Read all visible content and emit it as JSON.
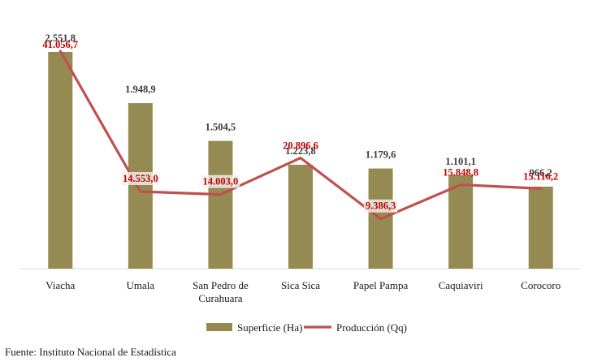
{
  "chart_data": {
    "type": "bar",
    "categories": [
      [
        "Viacha"
      ],
      [
        "Umala"
      ],
      [
        "San Pedro de",
        "Curahuara"
      ],
      [
        "Sica Sica"
      ],
      [
        "Papel Pampa"
      ],
      [
        "Caquiaviri"
      ],
      [
        "Corocoro"
      ]
    ],
    "series": [
      {
        "name": "Superficie (Ha)",
        "type": "bar",
        "color": "#958b52",
        "values": [
          2551.8,
          1948.9,
          1504.5,
          1223.8,
          1179.6,
          1101.1,
          966.2
        ],
        "labels": [
          "2.551,8",
          "1.948,9",
          "1.504,5",
          "1.223,8",
          "1.179,6",
          "1.101,1",
          "966,2"
        ]
      },
      {
        "name": "Producción (Qq)",
        "type": "line",
        "color": "#c0504d",
        "values": [
          41056.7,
          14553.0,
          14003.0,
          20896.6,
          9386.3,
          15848.8,
          15116.2
        ],
        "labels": [
          "41.056,7",
          "14.553,0",
          "14.003,0",
          "20.896,6",
          "9.386,3",
          "15.848,8",
          "15.116,2"
        ]
      }
    ],
    "legend_position": "bottom",
    "grid": false
  },
  "source": "Fuente: Instituto Nacional de Estadística"
}
